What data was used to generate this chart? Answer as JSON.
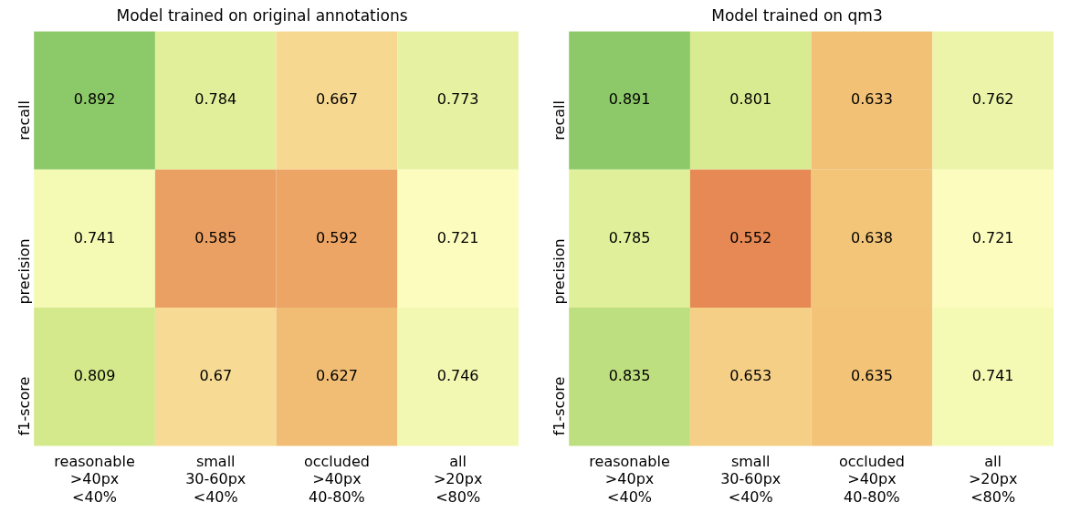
{
  "chart_data": [
    {
      "type": "heatmap",
      "title": "Model trained on original annotations",
      "categories": [
        "reasonable\n>40px\n<40%",
        "small\n30-60px\n<40%",
        "occluded\n>40px\n40-80%",
        "all\n>20px\n<80%"
      ],
      "y_categories": [
        "recall",
        "precision",
        "f1-score"
      ],
      "cells": [
        [
          0.892,
          0.784,
          0.667,
          0.773
        ],
        [
          0.741,
          0.585,
          0.592,
          0.721
        ],
        [
          0.809,
          0.67,
          0.627,
          0.746
        ]
      ],
      "data_labels": true
    },
    {
      "type": "heatmap",
      "title": "Model trained on qm3",
      "categories": [
        "reasonable\n>40px\n<40%",
        "small\n30-60px\n<40%",
        "occluded\n>40px\n40-80%",
        "all\n>20px\n<80%"
      ],
      "y_categories": [
        "recall",
        "precision",
        "f1-score"
      ],
      "cells": [
        [
          0.891,
          0.801,
          0.633,
          0.762
        ],
        [
          0.785,
          0.552,
          0.638,
          0.721
        ],
        [
          0.835,
          0.653,
          0.635,
          0.741
        ]
      ],
      "data_labels": true
    }
  ]
}
